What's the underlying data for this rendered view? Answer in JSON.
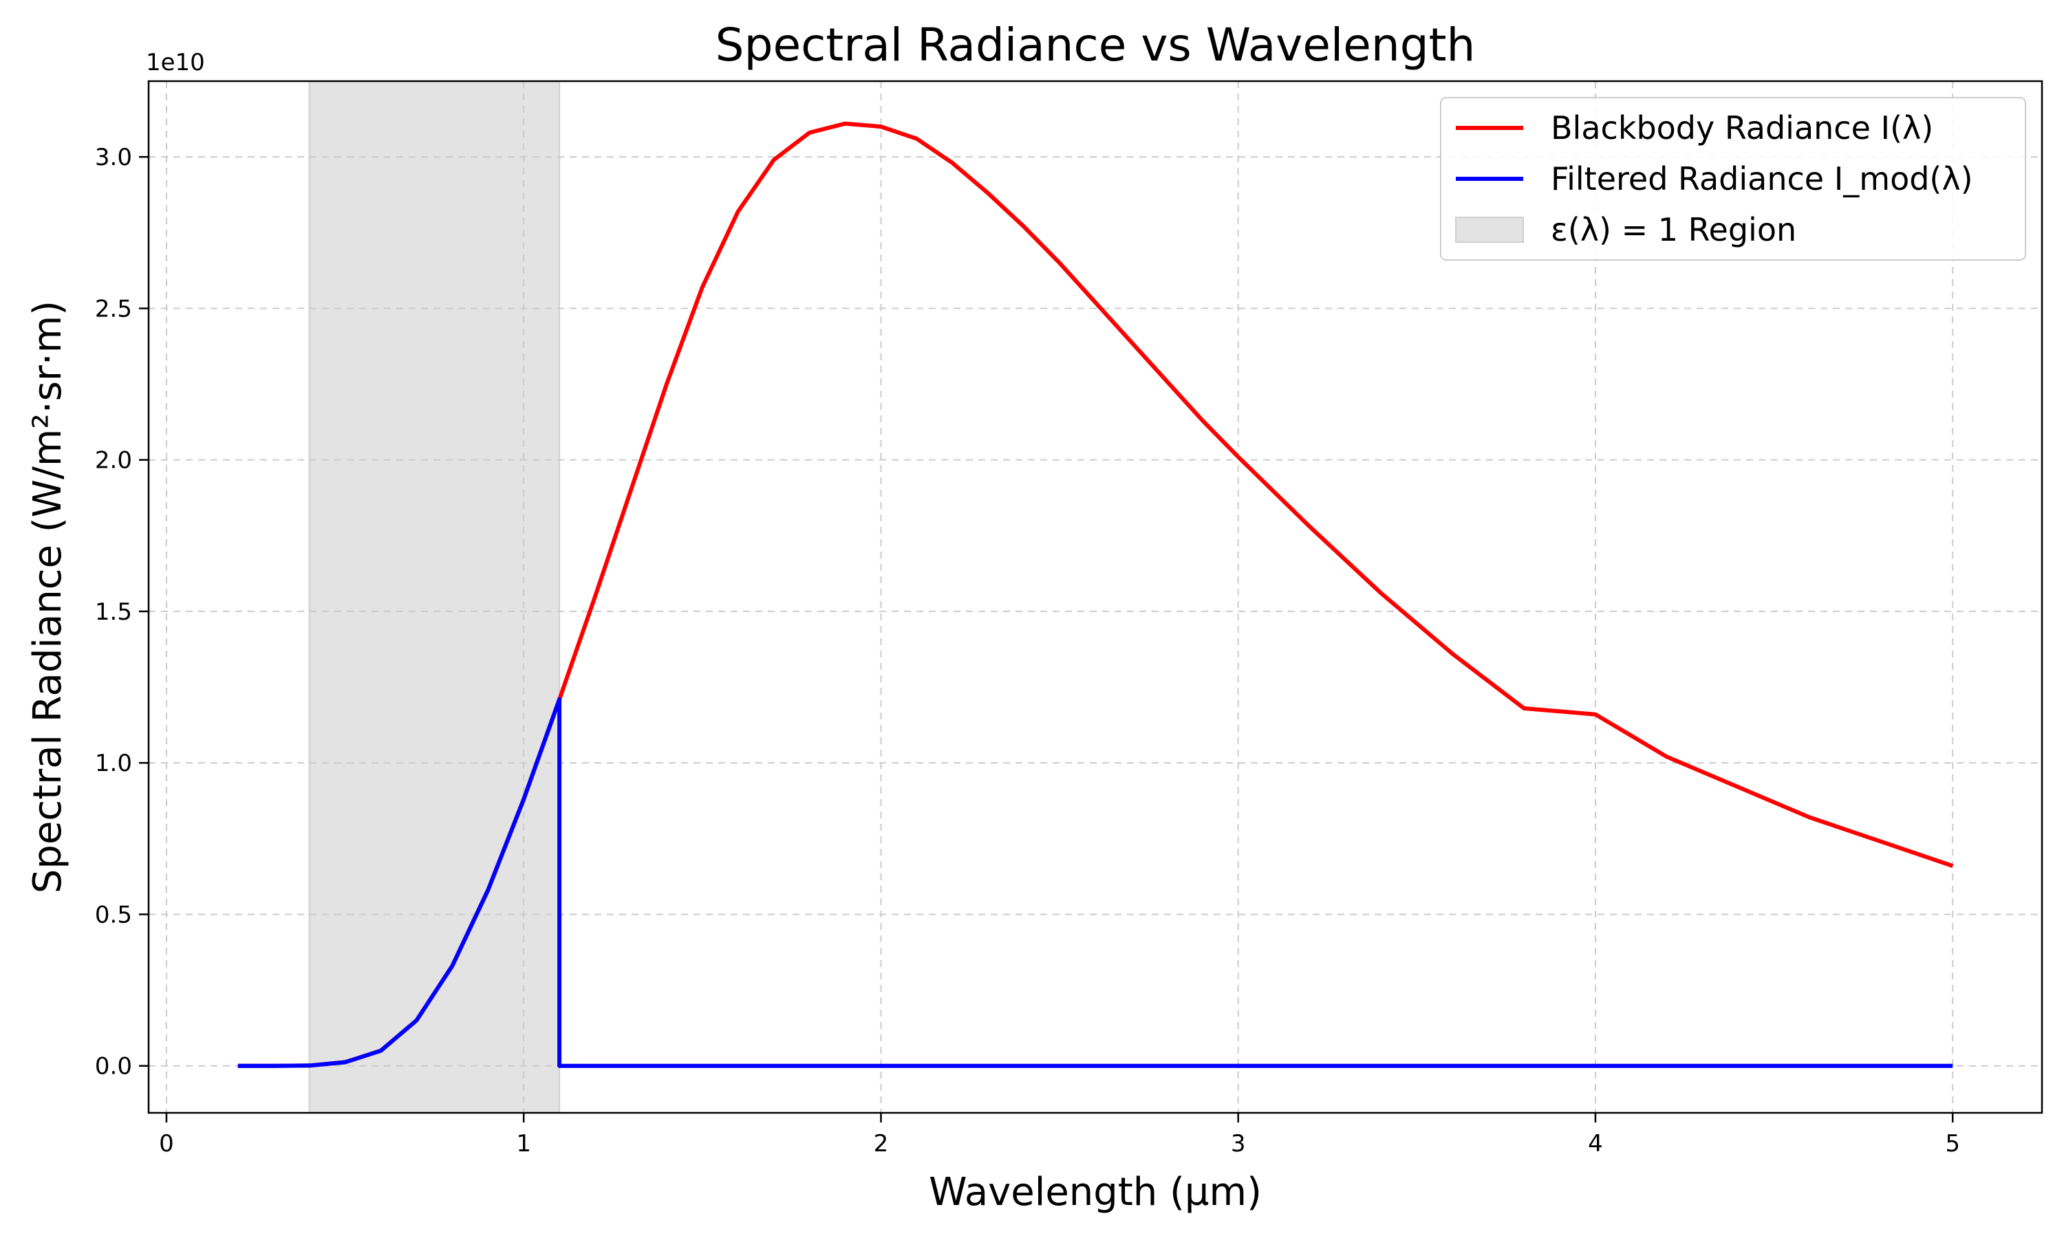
{
  "chart_data": {
    "type": "line",
    "title": "Spectral Radiance vs Wavelength",
    "xlabel": "Wavelength (µm)",
    "ylabel": "Spectral Radiance (W/m²·sr·m)",
    "y_offset_label": "1e10",
    "xlim": [
      -0.05,
      5.25
    ],
    "ylim": [
      -1550000000.0,
      32500000000.0
    ],
    "x_ticks": [
      0,
      1,
      2,
      3,
      4,
      5
    ],
    "x_tick_labels": [
      "0",
      "1",
      "2",
      "3",
      "4",
      "5"
    ],
    "y_ticks": [
      0,
      5000000000.0,
      10000000000.0,
      15000000000.0,
      20000000000.0,
      25000000000.0,
      30000000000.0
    ],
    "y_tick_labels": [
      "0.0",
      "0.5",
      "1.0",
      "1.5",
      "2.0",
      "2.5",
      "3.0"
    ],
    "grid": true,
    "legend_position": "top-right",
    "shaded_region": {
      "label": "ε(λ) = 1 Region",
      "x_start": 0.4,
      "x_end": 1.1,
      "color": "#e3e3e3"
    },
    "series": [
      {
        "name": "Blackbody Radiance I(λ)",
        "color": "#ff0000",
        "x": [
          0.2,
          0.3,
          0.4,
          0.5,
          0.6,
          0.7,
          0.8,
          0.9,
          1.0,
          1.1,
          1.2,
          1.3,
          1.4,
          1.5,
          1.6,
          1.7,
          1.8,
          1.9,
          2.0,
          2.1,
          2.2,
          2.3,
          2.4,
          2.5,
          2.6,
          2.7,
          2.8,
          2.9,
          3.0,
          3.2,
          3.4,
          3.6,
          3.8,
          4.0,
          4.2,
          4.4,
          4.6,
          4.8,
          5.0
        ],
        "y": [
          0,
          0,
          10000000.0,
          120000000.0,
          500000000.0,
          1500000000.0,
          3300000000.0,
          5800000000.0,
          8800000000.0,
          12100000000.0,
          15500000000.0,
          19000000000.0,
          22500000000.0,
          25700000000.0,
          28200000000.0,
          29900000000.0,
          30800000000.0,
          31100000000.0,
          31000000000.0,
          30600000000.0,
          29800000000.0,
          28800000000.0,
          27700000000.0,
          26500000000.0,
          25200000000.0,
          23900000000.0,
          22600000000.0,
          21300000000.0,
          20100000000.0,
          17800000000.0,
          15600000000.0,
          13600000000.0,
          11800000000.0,
          11600000000.0,
          10200000000.0,
          9200000000.0,
          8200000000.0,
          7400000000.0,
          6600000000.0
        ]
      },
      {
        "name": "Filtered Radiance I_mod(λ)",
        "color": "#0000ff",
        "x": [
          0.2,
          0.3,
          0.4,
          0.5,
          0.6,
          0.7,
          0.8,
          0.9,
          1.0,
          1.1,
          1.1,
          1.11,
          5.0
        ],
        "y": [
          0,
          0,
          10000000.0,
          120000000.0,
          500000000.0,
          1500000000.0,
          3300000000.0,
          5800000000.0,
          8800000000.0,
          12100000000.0,
          0,
          0,
          0
        ]
      }
    ]
  }
}
